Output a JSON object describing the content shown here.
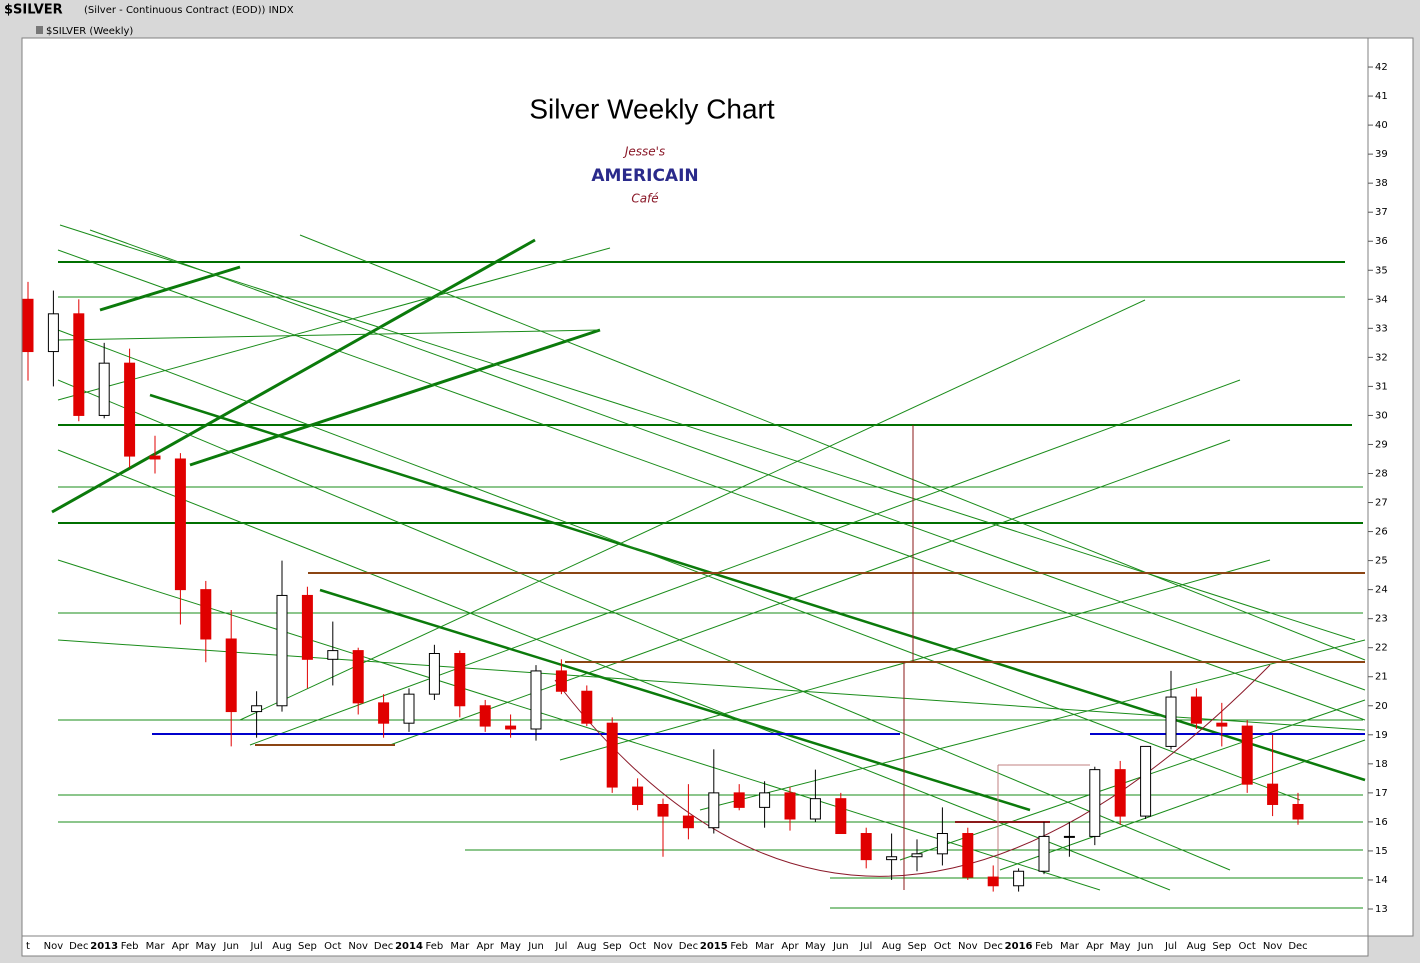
{
  "header": {
    "symbol": "$SILVER",
    "description": "(Silver - Continuous Contract (EOD)) INDX",
    "legend": "$SILVER (Weekly)"
  },
  "logo": {
    "line1": "Jesse's",
    "line2": "AMERICAIN",
    "line3": "Café"
  },
  "chart_data": {
    "type": "candlestick",
    "title": "Silver Weekly Chart",
    "categories": [
      "t",
      "Nov",
      "Dec",
      "2013",
      "Feb",
      "Mar",
      "Apr",
      "May",
      "Jun",
      "Jul",
      "Aug",
      "Sep",
      "Oct",
      "Nov",
      "Dec",
      "2014",
      "Feb",
      "Mar",
      "Apr",
      "May",
      "Jun",
      "Jul",
      "Aug",
      "Sep",
      "Oct",
      "Nov",
      "Dec",
      "2015",
      "Feb",
      "Mar",
      "Apr",
      "May",
      "Jun",
      "Jul",
      "Aug",
      "Sep",
      "Oct",
      "Nov",
      "Dec",
      "2016",
      "Feb",
      "Mar",
      "Apr",
      "May",
      "Jun",
      "Jul",
      "Aug",
      "Sep",
      "Oct",
      "Nov",
      "Dec"
    ],
    "open": [
      34.0,
      32.2,
      33.5,
      30.0,
      31.8,
      28.6,
      28.5,
      24.0,
      22.3,
      19.8,
      20.0,
      23.8,
      21.6,
      21.9,
      20.1,
      19.4,
      20.4,
      21.8,
      20.0,
      19.3,
      19.2,
      21.2,
      20.5,
      19.4,
      17.2,
      16.6,
      16.2,
      15.8,
      17.0,
      16.5,
      17.0,
      16.1,
      16.8,
      15.6,
      14.7,
      14.8,
      14.9,
      15.6,
      14.1,
      13.8,
      14.3,
      15.5,
      15.5,
      17.8,
      16.2,
      18.6,
      20.3,
      19.4,
      19.3,
      17.3,
      16.6
    ],
    "high": [
      34.6,
      34.3,
      34.0,
      32.5,
      32.3,
      29.3,
      28.7,
      24.3,
      23.3,
      20.5,
      25.0,
      24.1,
      22.9,
      22.0,
      20.4,
      20.6,
      22.1,
      21.9,
      20.2,
      19.7,
      21.4,
      21.6,
      20.7,
      19.6,
      17.5,
      16.8,
      17.3,
      18.5,
      17.3,
      17.4,
      17.2,
      17.8,
      17.0,
      15.8,
      15.6,
      15.4,
      16.5,
      15.8,
      14.5,
      14.4,
      16.0,
      16.0,
      17.9,
      18.1,
      18.6,
      21.2,
      20.6,
      20.1,
      19.5,
      19.0,
      17.0
    ],
    "low": [
      31.2,
      31.0,
      29.8,
      29.9,
      28.2,
      28.0,
      22.8,
      21.5,
      18.6,
      18.9,
      19.8,
      20.6,
      20.7,
      19.7,
      18.9,
      19.1,
      20.2,
      19.6,
      19.1,
      18.9,
      18.8,
      20.4,
      19.3,
      17.0,
      16.4,
      14.8,
      15.4,
      15.6,
      16.4,
      15.8,
      15.7,
      16.0,
      15.6,
      14.4,
      14.0,
      14.3,
      14.5,
      14.0,
      13.6,
      13.6,
      14.2,
      14.8,
      15.2,
      15.9,
      16.1,
      18.5,
      19.2,
      18.6,
      17.0,
      16.2,
      15.9
    ],
    "close": [
      32.2,
      33.5,
      30.0,
      31.8,
      28.6,
      28.5,
      24.0,
      22.3,
      19.8,
      20.0,
      23.8,
      21.6,
      21.9,
      20.1,
      19.4,
      20.4,
      21.8,
      20.0,
      19.3,
      19.2,
      21.2,
      20.5,
      19.4,
      17.2,
      16.6,
      16.2,
      15.8,
      17.0,
      16.5,
      17.0,
      16.1,
      16.8,
      15.6,
      14.7,
      14.8,
      14.9,
      15.6,
      14.1,
      13.8,
      14.3,
      15.5,
      15.5,
      17.8,
      16.2,
      18.6,
      20.3,
      19.4,
      19.3,
      17.3,
      16.6,
      16.1
    ],
    "up_color": "#ffffff",
    "down_color": "#e00000",
    "ylim": [
      12.07,
      43.0
    ],
    "yticks": [
      13,
      14,
      15,
      16,
      17,
      18,
      19,
      20,
      21,
      22,
      23,
      24,
      25,
      26,
      27,
      28,
      29,
      30,
      31,
      32,
      33,
      34,
      35,
      36,
      37,
      38,
      39,
      40,
      41,
      42
    ]
  }
}
